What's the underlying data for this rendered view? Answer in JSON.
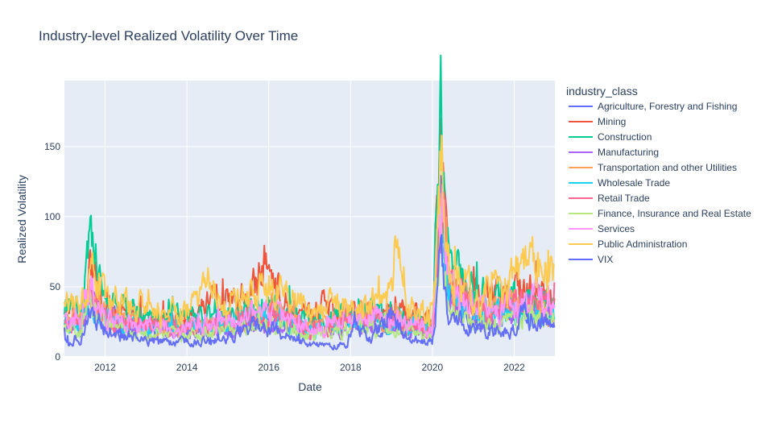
{
  "chart_data": {
    "type": "line",
    "title": "Industry-level Realized Volatility Over Time",
    "xlabel": "Date",
    "ylabel": "Realized Volatility",
    "xlim": [
      "2011-01-03",
      "2022-12-30"
    ],
    "ylim": [
      0,
      197
    ],
    "x_ticks": [
      "2012",
      "2014",
      "2016",
      "2018",
      "2020",
      "2022"
    ],
    "y_ticks": [
      0,
      50,
      100,
      150
    ],
    "grid": true,
    "plot_bgcolor": "#e5ecf6",
    "legend": {
      "title": "industry_class",
      "placement": "right"
    },
    "series": [
      {
        "name": "Agriculture, Forestry and Fishing",
        "color": "#636efa",
        "scale": 1.0,
        "points": [
          [
            "2011-01-03",
            24
          ],
          [
            "2011-06-01",
            22
          ],
          [
            "2011-08-20",
            42
          ],
          [
            "2012-01-01",
            26
          ],
          [
            "2013-01-01",
            19
          ],
          [
            "2014-01-01",
            19
          ],
          [
            "2015-01-01",
            22
          ],
          [
            "2016-01-20",
            28
          ],
          [
            "2017-01-01",
            18
          ],
          [
            "2018-02-10",
            26
          ],
          [
            "2019-01-01",
            23
          ],
          [
            "2020-01-01",
            17
          ],
          [
            "2020-03-20",
            105
          ],
          [
            "2020-06-01",
            42
          ],
          [
            "2021-01-01",
            28
          ],
          [
            "2022-01-01",
            28
          ],
          [
            "2022-06-15",
            36
          ],
          [
            "2022-12-30",
            27
          ]
        ]
      },
      {
        "name": "Mining",
        "color": "#EF553B",
        "scale": 1.0,
        "points": [
          [
            "2011-01-03",
            33
          ],
          [
            "2011-06-01",
            30
          ],
          [
            "2011-08-20",
            62
          ],
          [
            "2012-01-01",
            35
          ],
          [
            "2013-01-01",
            28
          ],
          [
            "2014-01-01",
            28
          ],
          [
            "2014-12-15",
            45
          ],
          [
            "2015-03-01",
            38
          ],
          [
            "2015-08-25",
            56
          ],
          [
            "2016-01-25",
            68
          ],
          [
            "2016-06-01",
            40
          ],
          [
            "2017-01-01",
            28
          ],
          [
            "2017-05-01",
            35
          ],
          [
            "2018-02-10",
            30
          ],
          [
            "2019-01-01",
            33
          ],
          [
            "2020-01-01",
            26
          ],
          [
            "2020-03-20",
            150
          ],
          [
            "2020-06-01",
            60
          ],
          [
            "2021-01-01",
            40
          ],
          [
            "2022-03-10",
            48
          ],
          [
            "2022-12-30",
            40
          ]
        ]
      },
      {
        "name": "Construction",
        "color": "#00cc96",
        "scale": 1.0,
        "points": [
          [
            "2011-01-03",
            36
          ],
          [
            "2011-06-01",
            33
          ],
          [
            "2011-08-20",
            84
          ],
          [
            "2012-01-01",
            38
          ],
          [
            "2013-01-01",
            30
          ],
          [
            "2014-01-01",
            28
          ],
          [
            "2015-01-01",
            28
          ],
          [
            "2016-01-25",
            38
          ],
          [
            "2017-01-01",
            24
          ],
          [
            "2018-02-10",
            33
          ],
          [
            "2019-01-01",
            32
          ],
          [
            "2020-01-01",
            22
          ],
          [
            "2020-03-18",
            185
          ],
          [
            "2020-05-01",
            80
          ],
          [
            "2020-10-01",
            50
          ],
          [
            "2021-01-01",
            45
          ],
          [
            "2022-01-01",
            40
          ],
          [
            "2022-06-15",
            42
          ],
          [
            "2022-12-30",
            38
          ]
        ]
      },
      {
        "name": "Manufacturing",
        "color": "#ab63fa",
        "scale": 1.0,
        "points": [
          [
            "2011-01-03",
            22
          ],
          [
            "2011-06-01",
            20
          ],
          [
            "2011-08-20",
            40
          ],
          [
            "2012-01-01",
            24
          ],
          [
            "2013-01-01",
            17
          ],
          [
            "2014-01-01",
            16
          ],
          [
            "2015-01-01",
            20
          ],
          [
            "2016-01-20",
            25
          ],
          [
            "2017-01-01",
            15
          ],
          [
            "2018-02-10",
            25
          ],
          [
            "2019-01-01",
            22
          ],
          [
            "2020-01-01",
            16
          ],
          [
            "2020-03-20",
            98
          ],
          [
            "2020-06-01",
            38
          ],
          [
            "2021-01-01",
            25
          ],
          [
            "2022-01-01",
            28
          ],
          [
            "2022-06-15",
            34
          ],
          [
            "2022-12-30",
            28
          ]
        ]
      },
      {
        "name": "Transportation and other Utilities",
        "color": "#FFA15A",
        "scale": 1.0,
        "points": [
          [
            "2011-01-03",
            27
          ],
          [
            "2011-06-01",
            25
          ],
          [
            "2011-08-20",
            50
          ],
          [
            "2012-01-01",
            28
          ],
          [
            "2013-01-01",
            22
          ],
          [
            "2014-01-01",
            22
          ],
          [
            "2015-01-01",
            25
          ],
          [
            "2016-01-20",
            35
          ],
          [
            "2017-01-01",
            20
          ],
          [
            "2018-02-10",
            30
          ],
          [
            "2019-01-01",
            28
          ],
          [
            "2020-01-01",
            20
          ],
          [
            "2020-03-20",
            130
          ],
          [
            "2020-06-01",
            55
          ],
          [
            "2021-01-01",
            35
          ],
          [
            "2022-01-01",
            35
          ],
          [
            "2022-12-30",
            32
          ]
        ]
      },
      {
        "name": "Wholesale Trade",
        "color": "#19d3f3",
        "scale": 1.0,
        "points": [
          [
            "2011-01-03",
            25
          ],
          [
            "2011-06-01",
            23
          ],
          [
            "2011-08-20",
            45
          ],
          [
            "2012-01-01",
            26
          ],
          [
            "2013-01-01",
            20
          ],
          [
            "2014-01-01",
            20
          ],
          [
            "2015-01-01",
            23
          ],
          [
            "2016-01-20",
            30
          ],
          [
            "2017-01-01",
            18
          ],
          [
            "2018-02-10",
            26
          ],
          [
            "2019-01-01",
            25
          ],
          [
            "2020-01-01",
            18
          ],
          [
            "2020-03-20",
            110
          ],
          [
            "2020-06-01",
            45
          ],
          [
            "2021-01-01",
            30
          ],
          [
            "2022-01-01",
            30
          ],
          [
            "2022-12-30",
            28
          ]
        ]
      },
      {
        "name": "Retail Trade",
        "color": "#FF6692",
        "scale": 1.0,
        "points": [
          [
            "2011-01-03",
            26
          ],
          [
            "2011-06-01",
            24
          ],
          [
            "2011-08-20",
            46
          ],
          [
            "2012-01-01",
            27
          ],
          [
            "2013-01-01",
            21
          ],
          [
            "2014-01-01",
            21
          ],
          [
            "2015-01-01",
            24
          ],
          [
            "2016-01-20",
            31
          ],
          [
            "2017-01-01",
            20
          ],
          [
            "2018-02-10",
            28
          ],
          [
            "2019-01-01",
            26
          ],
          [
            "2020-01-01",
            19
          ],
          [
            "2020-03-20",
            112
          ],
          [
            "2020-06-01",
            48
          ],
          [
            "2021-01-01",
            32
          ],
          [
            "2022-01-01",
            34
          ],
          [
            "2022-06-15",
            40
          ],
          [
            "2022-12-30",
            33
          ]
        ]
      },
      {
        "name": "Finance, Insurance and Real Estate",
        "color": "#B6E880",
        "scale": 1.0,
        "points": [
          [
            "2011-01-03",
            21
          ],
          [
            "2011-06-01",
            19
          ],
          [
            "2011-08-20",
            38
          ],
          [
            "2012-01-01",
            22
          ],
          [
            "2013-01-01",
            16
          ],
          [
            "2014-01-01",
            16
          ],
          [
            "2015-01-01",
            18
          ],
          [
            "2016-01-20",
            24
          ],
          [
            "2017-01-01",
            14
          ],
          [
            "2018-02-10",
            23
          ],
          [
            "2019-01-01",
            20
          ],
          [
            "2020-01-01",
            14
          ],
          [
            "2020-03-20",
            100
          ],
          [
            "2020-06-01",
            36
          ],
          [
            "2021-01-01",
            23
          ],
          [
            "2022-01-01",
            25
          ],
          [
            "2022-06-15",
            30
          ],
          [
            "2022-12-30",
            24
          ]
        ]
      },
      {
        "name": "Services",
        "color": "#FF97FF",
        "scale": 1.0,
        "points": [
          [
            "2011-01-03",
            28
          ],
          [
            "2011-06-01",
            26
          ],
          [
            "2011-08-20",
            48
          ],
          [
            "2012-01-01",
            29
          ],
          [
            "2013-01-01",
            22
          ],
          [
            "2014-01-01",
            22
          ],
          [
            "2015-01-01",
            25
          ],
          [
            "2016-01-20",
            32
          ],
          [
            "2017-01-01",
            20
          ],
          [
            "2018-02-10",
            29
          ],
          [
            "2019-01-01",
            27
          ],
          [
            "2020-01-01",
            20
          ],
          [
            "2020-03-20",
            115
          ],
          [
            "2020-06-01",
            50
          ],
          [
            "2021-01-01",
            35
          ],
          [
            "2022-01-01",
            36
          ],
          [
            "2022-06-15",
            42
          ],
          [
            "2022-12-30",
            35
          ]
        ]
      },
      {
        "name": "Public Administration",
        "color": "#FECB52",
        "scale": 1.0,
        "points": [
          [
            "2011-01-03",
            38
          ],
          [
            "2011-06-01",
            35
          ],
          [
            "2011-08-20",
            60
          ],
          [
            "2012-01-01",
            40
          ],
          [
            "2013-01-01",
            35
          ],
          [
            "2014-01-01",
            35
          ],
          [
            "2014-06-01",
            45
          ],
          [
            "2015-01-01",
            38
          ],
          [
            "2016-01-25",
            50
          ],
          [
            "2017-01-01",
            32
          ],
          [
            "2018-02-10",
            38
          ],
          [
            "2019-01-01",
            40
          ],
          [
            "2019-02-01",
            70
          ],
          [
            "2019-06-01",
            38
          ],
          [
            "2020-01-01",
            32
          ],
          [
            "2020-03-20",
            145
          ],
          [
            "2020-06-01",
            60
          ],
          [
            "2021-01-01",
            45
          ],
          [
            "2022-01-01",
            55
          ],
          [
            "2022-06-01",
            68
          ],
          [
            "2022-12-30",
            55
          ]
        ]
      },
      {
        "name": "VIX",
        "color": "#636efa",
        "scale": 0.82,
        "points": [
          [
            "2011-01-03",
            17
          ],
          [
            "2011-06-01",
            16
          ],
          [
            "2011-08-20",
            43
          ],
          [
            "2012-01-01",
            23
          ],
          [
            "2013-01-01",
            14
          ],
          [
            "2014-01-01",
            13
          ],
          [
            "2015-01-01",
            15
          ],
          [
            "2015-08-25",
            28
          ],
          [
            "2016-01-20",
            24
          ],
          [
            "2017-01-01",
            11
          ],
          [
            "2017-12-01",
            10
          ],
          [
            "2018-02-06",
            37
          ],
          [
            "2018-06-01",
            14
          ],
          [
            "2018-12-24",
            36
          ],
          [
            "2019-06-01",
            16
          ],
          [
            "2020-01-01",
            13
          ],
          [
            "2020-03-16",
            82
          ],
          [
            "2020-06-01",
            32
          ],
          [
            "2021-01-01",
            25
          ],
          [
            "2021-12-01",
            20
          ],
          [
            "2022-03-07",
            36
          ],
          [
            "2022-10-01",
            32
          ],
          [
            "2022-12-30",
            22
          ]
        ]
      }
    ]
  }
}
